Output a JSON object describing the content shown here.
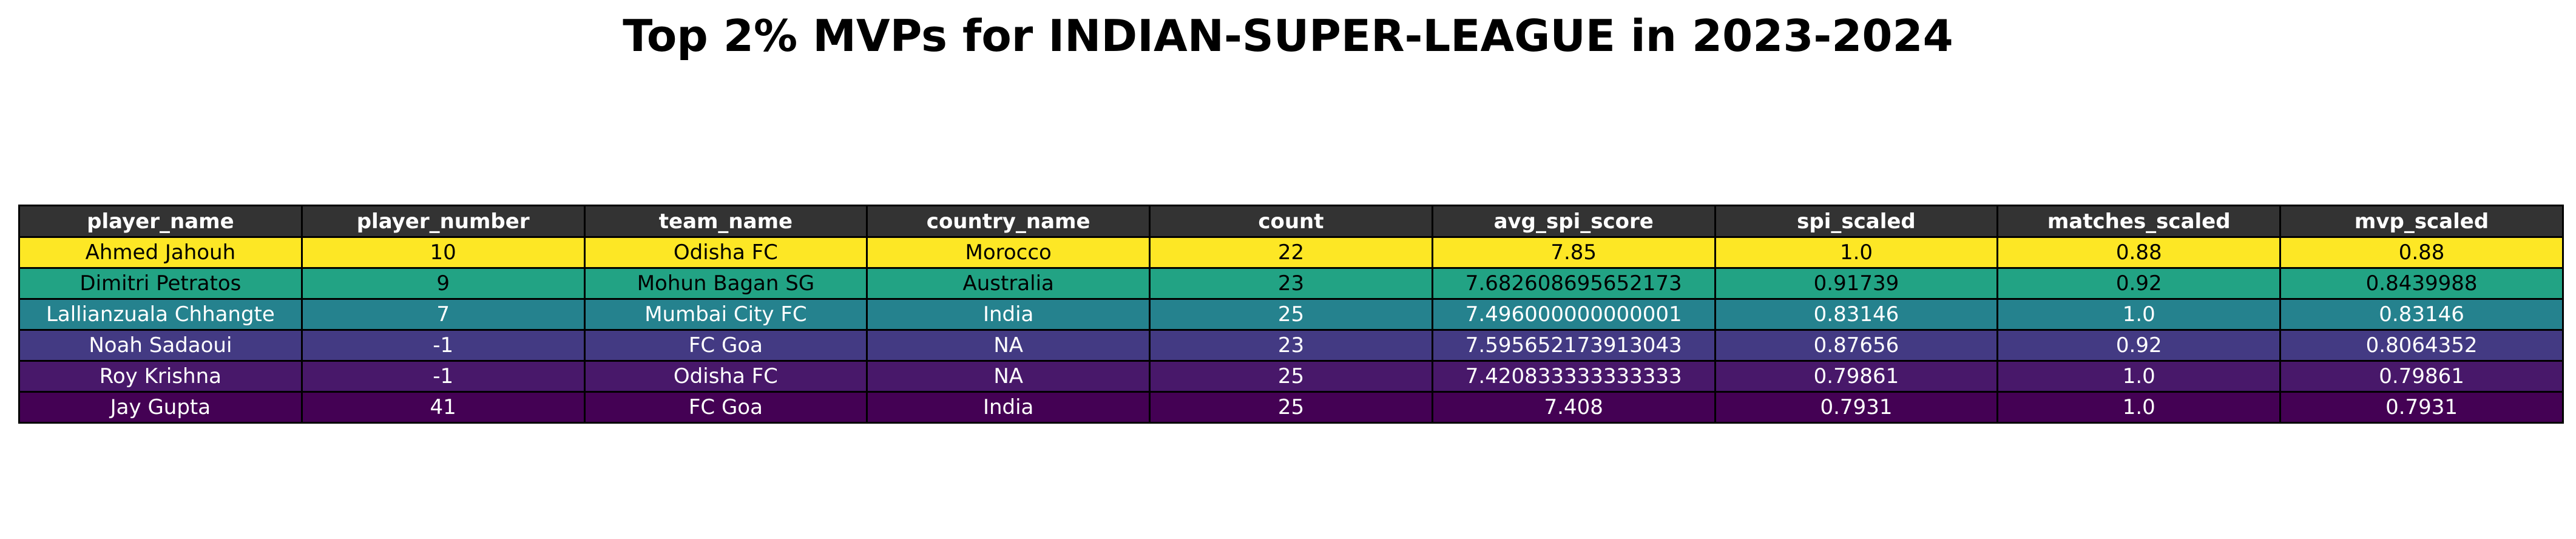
{
  "chart_data": {
    "type": "table",
    "title": "Top 2% MVPs for INDIAN-SUPER-LEAGUE in 2023-2024",
    "columns": [
      "player_name",
      "player_number",
      "team_name",
      "country_name",
      "count",
      "avg_spi_score",
      "spi_scaled",
      "matches_scaled",
      "mvp_scaled"
    ],
    "rows": [
      {
        "cells": [
          "Ahmed Jahouh",
          "10",
          "Odisha FC",
          "Morocco",
          "22",
          "7.85",
          "1.0",
          "0.88",
          "0.88"
        ],
        "bg": "#fde725",
        "fg": "#000000"
      },
      {
        "cells": [
          "Dimitri Petratos",
          "9",
          "Mohun Bagan SG",
          "Australia",
          "23",
          "7.682608695652173",
          "0.91739",
          "0.92",
          "0.8439988"
        ],
        "bg": "#22a384",
        "fg": "#000000"
      },
      {
        "cells": [
          "Lallianzuala Chhangte",
          "7",
          "Mumbai City FC",
          "India",
          "25",
          "7.496000000000001",
          "0.83146",
          "1.0",
          "0.83146"
        ],
        "bg": "#25828e",
        "fg": "#ffffff"
      },
      {
        "cells": [
          "Noah Sadaoui",
          "-1",
          "FC Goa",
          "NA",
          "23",
          "7.595652173913043",
          "0.87656",
          "0.92",
          "0.8064352"
        ],
        "bg": "#433a83",
        "fg": "#ffffff"
      },
      {
        "cells": [
          "Roy Krishna",
          "-1",
          "Odisha FC",
          "NA",
          "25",
          "7.420833333333333",
          "0.79861",
          "1.0",
          "0.79861"
        ],
        "bg": "#48186a",
        "fg": "#ffffff"
      },
      {
        "cells": [
          "Jay Gupta",
          "41",
          "FC Goa",
          "India",
          "25",
          "7.408",
          "0.7931",
          "1.0",
          "0.7931"
        ],
        "bg": "#440154",
        "fg": "#ffffff"
      }
    ],
    "header_bg": "#333333",
    "header_fg": "#ffffff"
  }
}
